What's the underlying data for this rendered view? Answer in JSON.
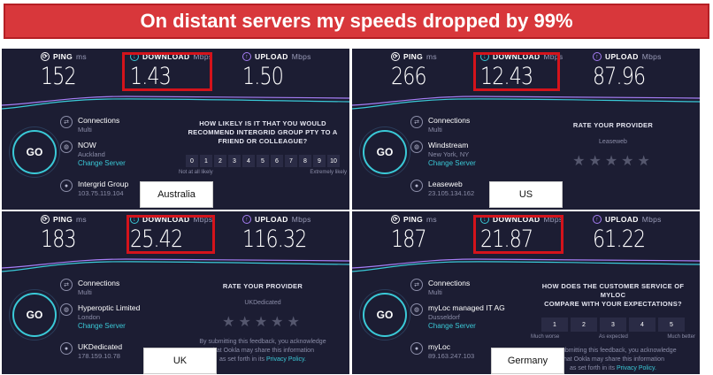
{
  "banner": "On distant servers my speeds dropped by 99%",
  "labels": {
    "ping": "PING",
    "ping_unit": "ms",
    "download": "DOWNLOAD",
    "download_unit": "Mbps",
    "upload": "UPLOAD",
    "upload_unit": "Mbps",
    "go": "GO",
    "connections": "Connections",
    "connections_mode": "Multi",
    "change_server": "Change Server"
  },
  "panels": [
    {
      "ping": "152",
      "download": "1.43",
      "upload": "1.50",
      "isp": "NOW",
      "server_location": "Auckland",
      "host": "Intergrid Group",
      "ip": "103.75.119.104",
      "survey": {
        "question_line1": "HOW LIKELY IS IT THAT YOU WOULD",
        "question_line2": "RECOMMEND INTERGRID GROUP PTY TO A",
        "question_line3": "FRIEND OR COLLEAGUE?",
        "scale": [
          "0",
          "1",
          "2",
          "3",
          "4",
          "5",
          "6",
          "7",
          "8",
          "9",
          "10"
        ],
        "low": "Not at all likely",
        "high": "Extremely likely"
      },
      "location": "Australia"
    },
    {
      "ping": "266",
      "download": "12.43",
      "upload": "87.96",
      "isp": "Windstream",
      "server_location": "New York, NY",
      "host": "Leaseweb",
      "ip": "23.105.134.162",
      "survey": {
        "title": "RATE YOUR PROVIDER",
        "provider": "Leaseweb",
        "stars": "★★★★★"
      },
      "location": "US"
    },
    {
      "ping": "183",
      "download": "25.42",
      "upload": "116.32",
      "isp": "Hyperoptic Limited",
      "server_location": "London",
      "host": "UKDedicated",
      "ip": "178.159.10.78",
      "survey": {
        "title": "RATE YOUR PROVIDER",
        "provider": "UKDedicated",
        "stars": "★★★★★",
        "fine_line1": "By submitting this feedback, you acknowledge",
        "fine_line2": "that Ookla may share this information",
        "fine_line3": "as set forth in its",
        "fine_link": "Privacy Policy."
      },
      "location": "UK"
    },
    {
      "ping": "187",
      "download": "21.87",
      "upload": "61.22",
      "isp": "myLoc managed IT AG",
      "server_location": "Dusseldorf",
      "host": "myLoc",
      "ip": "89.163.247.103",
      "survey": {
        "question_line1": "HOW DOES THE CUSTOMER SERVICE OF MYLOC",
        "question_line2": "COMPARE WITH YOUR EXPECTATIONS?",
        "scale": [
          "1",
          "2",
          "3",
          "4",
          "5"
        ],
        "low": "Much worse",
        "mid": "As expected",
        "high": "Much better",
        "fine_line1": "By submitting this feedback, you acknowledge",
        "fine_line2": "that Ookla may share this information",
        "fine_line3": "as set forth in its",
        "fine_link": "Privacy Policy."
      },
      "location": "Germany"
    }
  ],
  "colors": {
    "banner": "#d8373b",
    "panel_bg": "#1c1d33",
    "accent_cyan": "#3ac9d7",
    "accent_purple": "#a67ef6",
    "highlight": "#d4131b"
  }
}
